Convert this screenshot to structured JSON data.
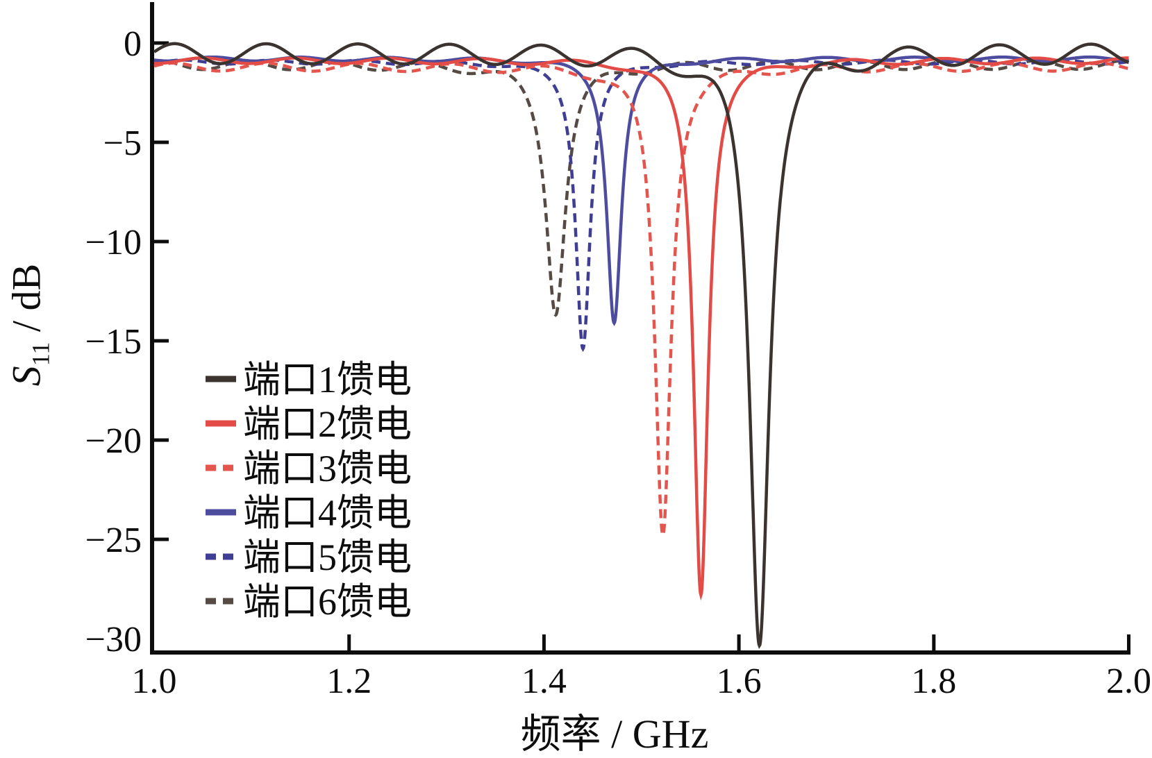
{
  "chart_data": {
    "type": "line",
    "title": "",
    "xlabel": "频率 / GHz",
    "ylabel": {
      "symbol": "S",
      "subscript": "11",
      "unit": " / dB"
    },
    "xlim": [
      1.0,
      2.0
    ],
    "ylim": [
      -30,
      0
    ],
    "grid": false,
    "legend_position": "lower-left",
    "x_ticks": [
      1.0,
      1.2,
      1.4,
      1.6,
      1.8,
      2.0
    ],
    "x_tick_labels": [
      "1.0",
      "1.2",
      "1.4",
      "1.6",
      "1.8",
      "2.0"
    ],
    "y_ticks": [
      0,
      -5,
      -10,
      -15,
      -20,
      -25,
      -30
    ],
    "y_tick_labels": [
      "0",
      "−5",
      "−10",
      "−15",
      "−20",
      "−25",
      "−30"
    ],
    "series": [
      {
        "name": "端口1馈电",
        "color": "#3a332f",
        "style": "solid",
        "resonance_ghz": 1.621,
        "min_db": -30.35,
        "width_ghz": 0.012,
        "baseline_db": -0.52,
        "ripple_amp_db": 0.5,
        "ripple_period_ghz": 0.094,
        "ripple_phase_ghz": 1.021
      },
      {
        "name": "端口2馈电",
        "color": "#e24b46",
        "style": "solid",
        "resonance_ghz": 1.561,
        "min_db": -27.8,
        "width_ghz": 0.009,
        "baseline_db": -0.88,
        "ripple_amp_db": 0.14,
        "ripple_period_ghz": 0.095,
        "ripple_phase_ghz": 1.05
      },
      {
        "name": "端口3馈电",
        "color": "#e4554e",
        "style": "dashed",
        "resonance_ghz": 1.522,
        "min_db": -24.8,
        "width_ghz": 0.01,
        "baseline_db": -1.2,
        "ripple_amp_db": 0.2,
        "ripple_period_ghz": 0.095,
        "ripple_phase_ghz": 1.02
      },
      {
        "name": "端口4馈电",
        "color": "#4e4c9e",
        "style": "solid",
        "resonance_ghz": 1.472,
        "min_db": -14.1,
        "width_ghz": 0.009,
        "baseline_db": -0.8,
        "ripple_amp_db": 0.1,
        "ripple_period_ghz": 0.09,
        "ripple_phase_ghz": 1.06
      },
      {
        "name": "端口5馈电",
        "color": "#403e92",
        "style": "dashed",
        "resonance_ghz": 1.44,
        "min_db": -15.4,
        "width_ghz": 0.009,
        "baseline_db": -0.95,
        "ripple_amp_db": 0.1,
        "ripple_period_ghz": 0.09,
        "ripple_phase_ghz": 1.03
      },
      {
        "name": "端口6馈电",
        "color": "#554a44",
        "style": "dashed",
        "resonance_ghz": 1.412,
        "min_db": -13.7,
        "width_ghz": 0.012,
        "baseline_db": -1.1,
        "ripple_amp_db": 0.22,
        "ripple_period_ghz": 0.09,
        "ripple_phase_ghz": 1.005
      }
    ]
  }
}
